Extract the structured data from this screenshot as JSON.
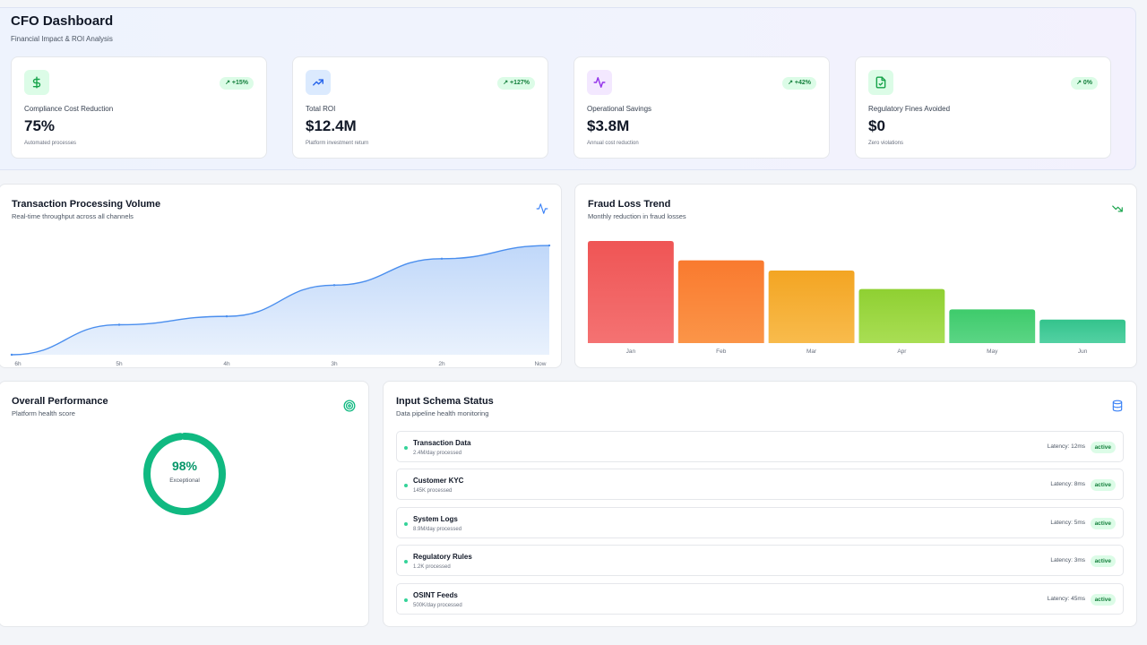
{
  "header": {
    "title": "CFO Dashboard",
    "subtitle": "Financial Impact & ROI Analysis"
  },
  "kpis": [
    {
      "icon": "dollar-icon",
      "label": "Compliance Cost Reduction",
      "value": "75%",
      "subtext": "Automated processes",
      "change": "+15%",
      "accent": "#16a34a",
      "icon_bg": "#dcfce7"
    },
    {
      "icon": "trending-up-icon",
      "label": "Total ROI",
      "value": "$12.4M",
      "subtext": "Platform investment return",
      "change": "+127%",
      "accent": "#2563eb",
      "icon_bg": "#dbeafe"
    },
    {
      "icon": "activity-icon",
      "label": "Operational Savings",
      "value": "$3.8M",
      "subtext": "Annual cost reduction",
      "change": "+42%",
      "accent": "#9333ea",
      "icon_bg": "#f3e8ff"
    },
    {
      "icon": "file-check-icon",
      "label": "Regulatory Fines Avoided",
      "value": "$0",
      "subtext": "Zero violations",
      "change": "0%",
      "accent": "#16a34a",
      "icon_bg": "#dcfce7"
    }
  ],
  "transaction_chart": {
    "title": "Transaction Processing Volume",
    "subtitle": "Real-time throughput across all channels",
    "icon": "activity-icon"
  },
  "fraud_chart": {
    "title": "Fraud Loss Trend",
    "subtitle": "Monthly reduction in fraud losses",
    "icon": "trending-down-icon"
  },
  "chart_data": [
    {
      "type": "area",
      "x": [
        "6h",
        "5h",
        "4h",
        "3h",
        "2h",
        "Now"
      ],
      "values": [
        0,
        25,
        32,
        58,
        80,
        91
      ],
      "ylim": [
        0,
        100
      ],
      "color": "#4a8eee",
      "grid": false
    },
    {
      "type": "bar",
      "categories": [
        "Jan",
        "Feb",
        "Mar",
        "Apr",
        "May",
        "Jun"
      ],
      "values": [
        100,
        81,
        71,
        53,
        33,
        23
      ],
      "ylim": [
        0,
        100
      ],
      "colors": [
        [
          "#ef5555",
          "#f47272"
        ],
        [
          "#f97a2f",
          "#fb9548"
        ],
        [
          "#f3a523",
          "#f8bb4c"
        ],
        [
          "#8fd032",
          "#a9de54"
        ],
        [
          "#3ecb6b",
          "#5bd585"
        ],
        [
          "#34c38c",
          "#53d1a3"
        ]
      ],
      "grid": false
    }
  ],
  "performance": {
    "title": "Overall Performance",
    "subtitle": "Platform health score",
    "icon": "target-icon",
    "score": "98%",
    "score_fraction": 0.98,
    "rating": "Exceptional",
    "color": "#10b981"
  },
  "schema": {
    "title": "Input Schema Status",
    "subtitle": "Data pipeline health monitoring",
    "icon": "database-icon",
    "rows": [
      {
        "name": "Transaction Data",
        "meta": "2.4M/day processed",
        "latency": "Latency: 12ms",
        "status": "active"
      },
      {
        "name": "Customer KYC",
        "meta": "145K processed",
        "latency": "Latency: 8ms",
        "status": "active"
      },
      {
        "name": "System Logs",
        "meta": "8.9M/day processed",
        "latency": "Latency: 5ms",
        "status": "active"
      },
      {
        "name": "Regulatory Rules",
        "meta": "1.2K processed",
        "latency": "Latency: 3ms",
        "status": "active"
      },
      {
        "name": "OSINT Feeds",
        "meta": "500K/day processed",
        "latency": "Latency: 45ms",
        "status": "active"
      }
    ]
  }
}
